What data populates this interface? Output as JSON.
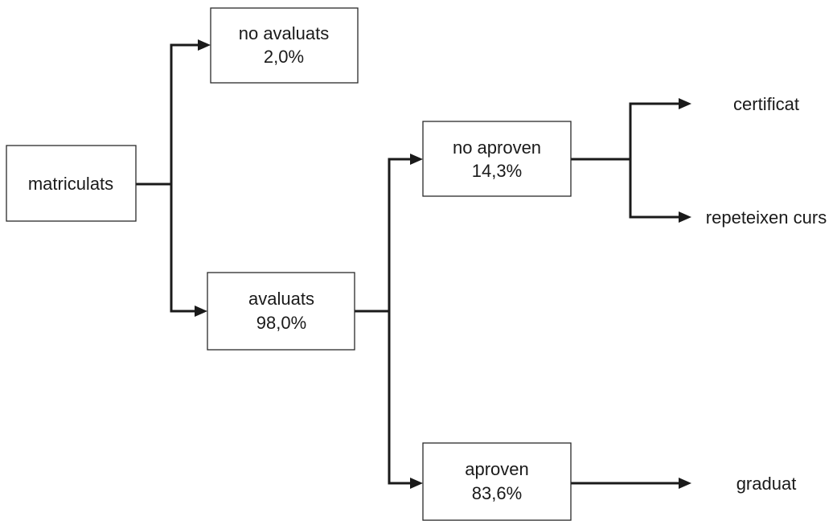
{
  "nodes": {
    "matriculats": {
      "label": "matriculats"
    },
    "no_avaluats": {
      "label": "no avaluats",
      "value": "2,0%"
    },
    "avaluats": {
      "label": "avaluats",
      "value": "98,0%"
    },
    "no_aproven": {
      "label": "no aproven",
      "value": "14,3%"
    },
    "aproven": {
      "label": "aproven",
      "value": "83,6%"
    },
    "certificat": {
      "label": "certificat"
    },
    "repeteixen_curs": {
      "label": "repeteixen curs"
    },
    "graduat": {
      "label": "graduat"
    }
  },
  "edges": [
    {
      "from": "matriculats",
      "to": "no_avaluats"
    },
    {
      "from": "matriculats",
      "to": "avaluats"
    },
    {
      "from": "avaluats",
      "to": "no_aproven"
    },
    {
      "from": "avaluats",
      "to": "aproven"
    },
    {
      "from": "no_aproven",
      "to": "certificat"
    },
    {
      "from": "no_aproven",
      "to": "repeteixen_curs"
    },
    {
      "from": "aproven",
      "to": "graduat"
    }
  ]
}
